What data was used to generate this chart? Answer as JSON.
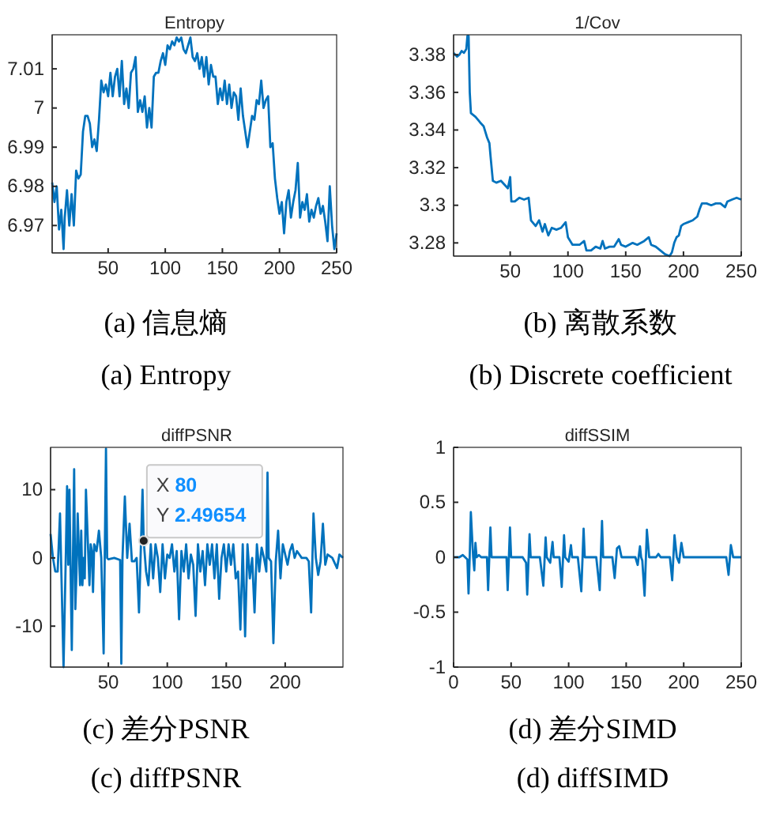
{
  "chart_data": [
    {
      "type": "line",
      "title": "Entropy",
      "xlim": [
        1,
        250
      ],
      "xticks": [
        50,
        100,
        150,
        200,
        250
      ],
      "ylim": [
        6.963,
        7.0187
      ],
      "yticks": [
        6.97,
        6.98,
        6.99,
        7,
        7.01
      ],
      "grid": false,
      "series": [
        {
          "color": "#0072bd",
          "x": [
            1,
            3,
            5,
            7,
            9,
            11,
            12,
            14,
            16,
            18,
            20,
            22,
            24,
            26,
            28,
            30,
            32,
            34,
            36,
            38,
            40,
            42,
            44,
            46,
            48,
            50,
            52,
            54,
            56,
            58,
            60,
            62,
            64,
            66,
            68,
            70,
            72,
            74,
            76,
            78,
            80,
            82,
            84,
            86,
            88,
            90,
            92,
            94,
            96,
            98,
            100,
            102,
            104,
            106,
            108,
            110,
            112,
            114,
            116,
            118,
            120,
            122,
            124,
            126,
            128,
            130,
            132,
            134,
            136,
            138,
            140,
            142,
            144,
            146,
            148,
            150,
            152,
            154,
            156,
            158,
            160,
            162,
            164,
            166,
            168,
            170,
            172,
            174,
            176,
            178,
            180,
            182,
            184,
            186,
            188,
            190,
            192,
            194,
            196,
            198,
            200,
            202,
            204,
            206,
            208,
            210,
            212,
            214,
            216,
            218,
            220,
            222,
            224,
            226,
            228,
            230,
            232,
            234,
            236,
            238,
            240,
            242,
            244,
            246,
            248,
            250
          ],
          "values": [
            6.981,
            6.976,
            6.98,
            6.969,
            6.974,
            6.964,
            6.972,
            6.979,
            6.97,
            6.978,
            6.97,
            6.984,
            6.982,
            6.983,
            6.994,
            6.998,
            6.998,
            6.996,
            6.99,
            6.992,
            6.989,
            6.997,
            7.007,
            7.004,
            7.006,
            7.003,
            7.009,
            7.003,
            7.008,
            7.01,
            7.003,
            7.012,
            7.001,
            7.005,
            7,
            7.009,
            7.01,
            7.013,
            6.999,
            7.002,
            6.999,
            7.003,
            6.995,
            7,
            6.995,
            7.008,
            7.009,
            7.009,
            7.012,
            7.014,
            7.011,
            7.016,
            7.015,
            7.017,
            7.016,
            7.018,
            7.017,
            7.018,
            7.015,
            7.014,
            7.016,
            7.018,
            7.013,
            7.012,
            7.014,
            7.01,
            7.013,
            7.008,
            7.013,
            7.006,
            7.011,
            7.008,
            7.008,
            7.001,
            7.005,
            7.002,
            7.007,
            7.001,
            7.006,
            7,
            7.004,
            7.003,
            6.997,
            7.005,
            6.998,
            6.994,
            6.99,
            6.994,
            6.998,
            6.997,
            7.002,
            7.001,
            7.007,
            7,
            7.002,
            7.003,
            6.99,
            6.991,
            6.982,
            6.977,
            6.973,
            6.976,
            6.968,
            6.976,
            6.979,
            6.972,
            6.976,
            6.979,
            6.986,
            6.972,
            6.976,
            6.974,
            6.978,
            6.971,
            6.974,
            6.972,
            6.975,
            6.977,
            6.973,
            6.975,
            6.971,
            6.966,
            6.98,
            6.97,
            6.964,
            6.968
          ]
        }
      ],
      "annotations": [
        "(a)  信息熵",
        "(a)  Entropy"
      ]
    },
    {
      "type": "line",
      "title": "1/Cov",
      "xlim": [
        1,
        250
      ],
      "xticks": [
        50,
        100,
        150,
        200,
        250
      ],
      "ylim": [
        3.273,
        3.3906
      ],
      "yticks": [
        3.28,
        3.3,
        3.32,
        3.34,
        3.36,
        3.38
      ],
      "grid": false,
      "series": [
        {
          "color": "#0072bd",
          "x": [
            1,
            4,
            6,
            8,
            10,
            12,
            13,
            14,
            15,
            16,
            20,
            24,
            27,
            30,
            32,
            33,
            35,
            38,
            42,
            45,
            48,
            50,
            51,
            54,
            58,
            62,
            66,
            68,
            72,
            75,
            78,
            80,
            83,
            86,
            90,
            94,
            98,
            100,
            104,
            110,
            114,
            116,
            120,
            124,
            128,
            130,
            132,
            136,
            140,
            144,
            146,
            150,
            156,
            160,
            166,
            170,
            172,
            176,
            180,
            184,
            188,
            190,
            192,
            194,
            196,
            198,
            200,
            204,
            208,
            212,
            214,
            216,
            220,
            224,
            228,
            232,
            236,
            238,
            242,
            246,
            250
          ],
          "values": [
            3.381,
            3.379,
            3.38,
            3.382,
            3.381,
            3.383,
            3.39,
            3.39,
            3.36,
            3.349,
            3.347,
            3.344,
            3.342,
            3.336,
            3.333,
            3.326,
            3.313,
            3.312,
            3.313,
            3.311,
            3.309,
            3.315,
            3.302,
            3.302,
            3.304,
            3.303,
            3.304,
            3.292,
            3.289,
            3.292,
            3.286,
            3.29,
            3.284,
            3.288,
            3.287,
            3.288,
            3.291,
            3.283,
            3.279,
            3.279,
            3.281,
            3.276,
            3.276,
            3.278,
            3.277,
            3.281,
            3.277,
            3.278,
            3.278,
            3.282,
            3.279,
            3.278,
            3.28,
            3.279,
            3.281,
            3.283,
            3.279,
            3.278,
            3.276,
            3.274,
            3.273,
            3.275,
            3.28,
            3.283,
            3.284,
            3.289,
            3.29,
            3.291,
            3.292,
            3.294,
            3.298,
            3.301,
            3.301,
            3.3,
            3.301,
            3.301,
            3.299,
            3.302,
            3.303,
            3.304,
            3.303
          ]
        }
      ],
      "annotations": [
        "(b)  离散系数",
        "(b)  Discrete coefficient"
      ]
    },
    {
      "type": "line",
      "title": "diffPSNR",
      "xlim": [
        1,
        249
      ],
      "xticks": [
        50,
        100,
        150,
        200
      ],
      "ylim": [
        -16,
        16.2
      ],
      "yticks": [
        -10,
        0,
        10
      ],
      "grid": false,
      "series": [
        {
          "color": "#0072bd",
          "x": [
            1,
            3,
            5,
            7,
            9,
            10,
            12,
            14,
            15,
            16,
            17,
            18,
            19,
            20,
            21,
            22,
            23,
            24,
            26,
            27,
            28,
            29,
            30,
            31,
            33,
            34,
            35,
            36,
            37,
            38,
            40,
            42,
            44,
            46,
            48,
            49,
            50,
            55,
            60,
            61,
            62,
            64,
            66,
            68,
            70,
            72,
            74,
            76,
            79,
            80,
            82,
            84,
            86,
            88,
            90,
            92,
            94,
            96,
            98,
            100,
            102,
            104,
            106,
            108,
            110,
            112,
            114,
            116,
            118,
            120,
            122,
            124,
            126,
            128,
            130,
            132,
            134,
            136,
            138,
            140,
            142,
            144,
            146,
            148,
            150,
            152,
            154,
            156,
            158,
            160,
            162,
            164,
            166,
            168,
            170,
            172,
            174,
            176,
            178,
            180,
            182,
            184,
            185,
            186,
            188,
            190,
            192,
            194,
            196,
            198,
            200,
            202,
            204,
            206,
            208,
            210,
            212,
            214,
            218,
            220,
            222,
            224,
            226,
            228,
            230,
            232,
            234,
            236,
            240,
            244,
            246,
            249
          ],
          "values": [
            3.5,
            0,
            -2,
            -2,
            6.5,
            -1,
            -16,
            1,
            10.5,
            -1,
            10,
            -2,
            -13.5,
            0,
            13,
            -7.5,
            -2,
            6.5,
            -4,
            4,
            -4,
            0,
            -3,
            10,
            0.5,
            -4,
            2,
            1,
            -5,
            2,
            1,
            4,
            0,
            -14,
            16,
            0,
            -0.2,
            0,
            -0.3,
            -15.5,
            0,
            9,
            0,
            5,
            -0.5,
            -0.5,
            0,
            -8,
            10,
            2.5,
            -2,
            -4,
            2,
            -3,
            2,
            0,
            -5,
            2,
            -3,
            0.5,
            0,
            2,
            -2,
            1,
            -9,
            1,
            -2,
            2,
            -3,
            0.5,
            -1,
            -8.5,
            2,
            -2,
            1,
            -4,
            2,
            -1,
            2,
            -3,
            2,
            -6,
            0,
            2,
            -2,
            2,
            -1,
            2,
            -3,
            -2,
            -10.5,
            2,
            -11.5,
            2,
            -3,
            0,
            -8,
            2,
            -2,
            1.5,
            0,
            -2,
            12.5,
            0,
            -0.5,
            -12.5,
            -0.5,
            4,
            -3,
            2,
            0.5,
            -1,
            1,
            2,
            0,
            1,
            0.5,
            0,
            0,
            -0.5,
            -8,
            6.5,
            0,
            -2.5,
            -0.5,
            5,
            -1,
            0.5,
            0,
            -1.5,
            0.5,
            0
          ]
        }
      ],
      "annotations": [
        {
          "text": "X 80\nY 2.49654",
          "x": 80,
          "y": 2.49654
        },
        "(c)  差分PSNR",
        "(c)  diffPSNR"
      ]
    },
    {
      "type": "line",
      "title": "diffSSIM",
      "xlim": [
        0,
        250
      ],
      "xticks": [
        0,
        50,
        100,
        150,
        200,
        250
      ],
      "ylim": [
        -1,
        1
      ],
      "yticks": [
        -1,
        -0.5,
        0,
        0.5,
        1
      ],
      "grid": false,
      "series": [
        {
          "color": "#0072bd",
          "x": [
            0,
            5,
            8,
            10,
            12,
            13,
            14,
            15,
            17,
            18,
            19,
            20,
            22,
            24,
            26,
            29,
            30,
            32,
            33,
            40,
            46,
            47,
            49,
            50,
            60,
            63,
            64,
            66,
            67,
            75,
            78,
            80,
            81,
            84,
            86,
            87,
            92,
            94,
            96,
            97,
            100,
            102,
            103,
            108,
            111,
            113,
            114,
            124,
            127,
            129,
            130,
            138,
            140,
            142,
            144,
            146,
            158,
            160,
            162,
            163,
            164,
            166,
            168,
            170,
            176,
            178,
            180,
            188,
            190,
            192,
            194,
            196,
            198,
            200,
            237,
            239,
            241,
            243,
            250
          ],
          "values": [
            0,
            0,
            0.02,
            0,
            -0.02,
            -0.33,
            0,
            0.41,
            0,
            -0.12,
            0.13,
            0,
            0.02,
            0,
            0,
            0,
            -0.3,
            0.27,
            0,
            0,
            0,
            -0.3,
            0.27,
            0,
            0,
            -0.05,
            -0.34,
            0.21,
            0,
            0,
            -0.26,
            0.18,
            0,
            -0.05,
            0.14,
            0,
            0,
            -0.27,
            0.2,
            0,
            -0.04,
            0.11,
            0,
            0,
            -0.31,
            0.26,
            0,
            0,
            -0.3,
            0.33,
            0,
            0,
            -0.19,
            0.08,
            0.1,
            0,
            0,
            -0.07,
            0.1,
            0,
            -0.03,
            -0.35,
            0.25,
            0,
            0,
            0.03,
            0,
            0,
            -0.21,
            0.2,
            0,
            -0.05,
            0.13,
            0,
            0,
            -0.16,
            0.11,
            0,
            0
          ]
        }
      ],
      "annotations": [
        "(d)  差分SIMD",
        "(d)  diffSIMD"
      ]
    }
  ]
}
